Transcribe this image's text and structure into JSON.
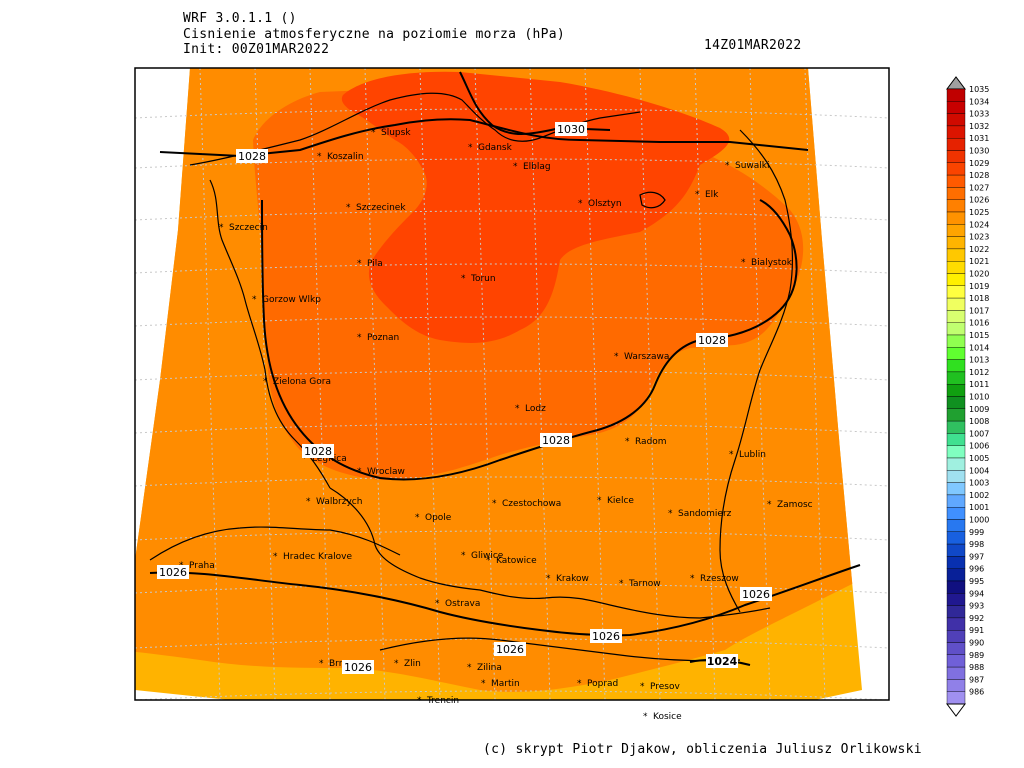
{
  "header": {
    "model_line": "WRF 3.0.1.1 ()",
    "variable_line": "Cisnienie atmosferyczne na poziomie morza (hPa)",
    "init_line": "Init: 00Z01MAR2022",
    "valid_time": "14Z01MAR2022"
  },
  "colors": {
    "frame": "#000000",
    "grid": "#c8c8c8",
    "band_1024": "#ffb300",
    "band_1026": "#ff8c00",
    "band_1028": "#ff6a00",
    "band_1030": "#ff4400"
  },
  "contour_labels": [
    "1030",
    "1028",
    "1028",
    "1028",
    "1028",
    "1026",
    "1026",
    "1026",
    "1026",
    "1026",
    "1024"
  ],
  "cities": [
    {
      "name": "Slupsk"
    },
    {
      "name": "Koszalin"
    },
    {
      "name": "Gdansk"
    },
    {
      "name": "Elblag"
    },
    {
      "name": "Suwalki"
    },
    {
      "name": "Szczecinek"
    },
    {
      "name": "Olsztyn"
    },
    {
      "name": "Elk"
    },
    {
      "name": "Szczecin"
    },
    {
      "name": "Pila"
    },
    {
      "name": "Torun"
    },
    {
      "name": "Bialystok"
    },
    {
      "name": "Gorzow Wlkp"
    },
    {
      "name": "Poznan"
    },
    {
      "name": "Warszawa"
    },
    {
      "name": "Zielona Gora"
    },
    {
      "name": "Lodz"
    },
    {
      "name": "Radom"
    },
    {
      "name": "Legnica"
    },
    {
      "name": "Wroclaw"
    },
    {
      "name": "Lublin"
    },
    {
      "name": "Walbrzych"
    },
    {
      "name": "Czestochowa"
    },
    {
      "name": "Kielce"
    },
    {
      "name": "Opole"
    },
    {
      "name": "Sandomierz"
    },
    {
      "name": "Zamosc"
    },
    {
      "name": "Hradec Kralove"
    },
    {
      "name": "Gliwice"
    },
    {
      "name": "Katowice"
    },
    {
      "name": "Praha"
    },
    {
      "name": "Krakow"
    },
    {
      "name": "Tarnow"
    },
    {
      "name": "Rzeszow"
    },
    {
      "name": "Ostrava"
    },
    {
      "name": "Brno"
    },
    {
      "name": "Zlin"
    },
    {
      "name": "Zilina"
    },
    {
      "name": "Martin"
    },
    {
      "name": "Poprad"
    },
    {
      "name": "Presov"
    },
    {
      "name": "Trencin"
    },
    {
      "name": "Kosice"
    }
  ],
  "colorbar": {
    "levels": [
      "1035",
      "1034",
      "1033",
      "1032",
      "1031",
      "1030",
      "1029",
      "1028",
      "1027",
      "1026",
      "1025",
      "1024",
      "1023",
      "1022",
      "1021",
      "1020",
      "1019",
      "1018",
      "1017",
      "1016",
      "1015",
      "1014",
      "1013",
      "1012",
      "1011",
      "1010",
      "1009",
      "1008",
      "1007",
      "1006",
      "1005",
      "1004",
      "1003",
      "1002",
      "1001",
      "1000",
      "999",
      "998",
      "997",
      "996",
      "995",
      "994",
      "993",
      "992",
      "991",
      "990",
      "989",
      "988",
      "987",
      "986"
    ],
    "colors": [
      "#c00000",
      "#c80000",
      "#d00a00",
      "#dc1400",
      "#e62200",
      "#f03300",
      "#fa4400",
      "#ff5a00",
      "#ff6e00",
      "#ff8000",
      "#ff9200",
      "#ffa400",
      "#ffb400",
      "#ffc800",
      "#ffdc00",
      "#fff000",
      "#ffff40",
      "#f0ff60",
      "#d8ff70",
      "#c0ff70",
      "#90ff50",
      "#60ff30",
      "#30e020",
      "#20c020",
      "#10a010",
      "#109020",
      "#20a030",
      "#30c060",
      "#40e090",
      "#80ffc0",
      "#a0f0e0",
      "#a0e0f0",
      "#80c8ff",
      "#60a8ff",
      "#4090ff",
      "#2878f0",
      "#1860e0",
      "#1048c8",
      "#0830b0",
      "#082098",
      "#101080",
      "#201890",
      "#302898",
      "#4030a8",
      "#5040b8",
      "#6050c8",
      "#7060d8",
      "#8070e0",
      "#9080e8",
      "#a090f0"
    ]
  },
  "credits": "(c) skrypt Piotr Djakow, obliczenia Juliusz Orlikowski"
}
